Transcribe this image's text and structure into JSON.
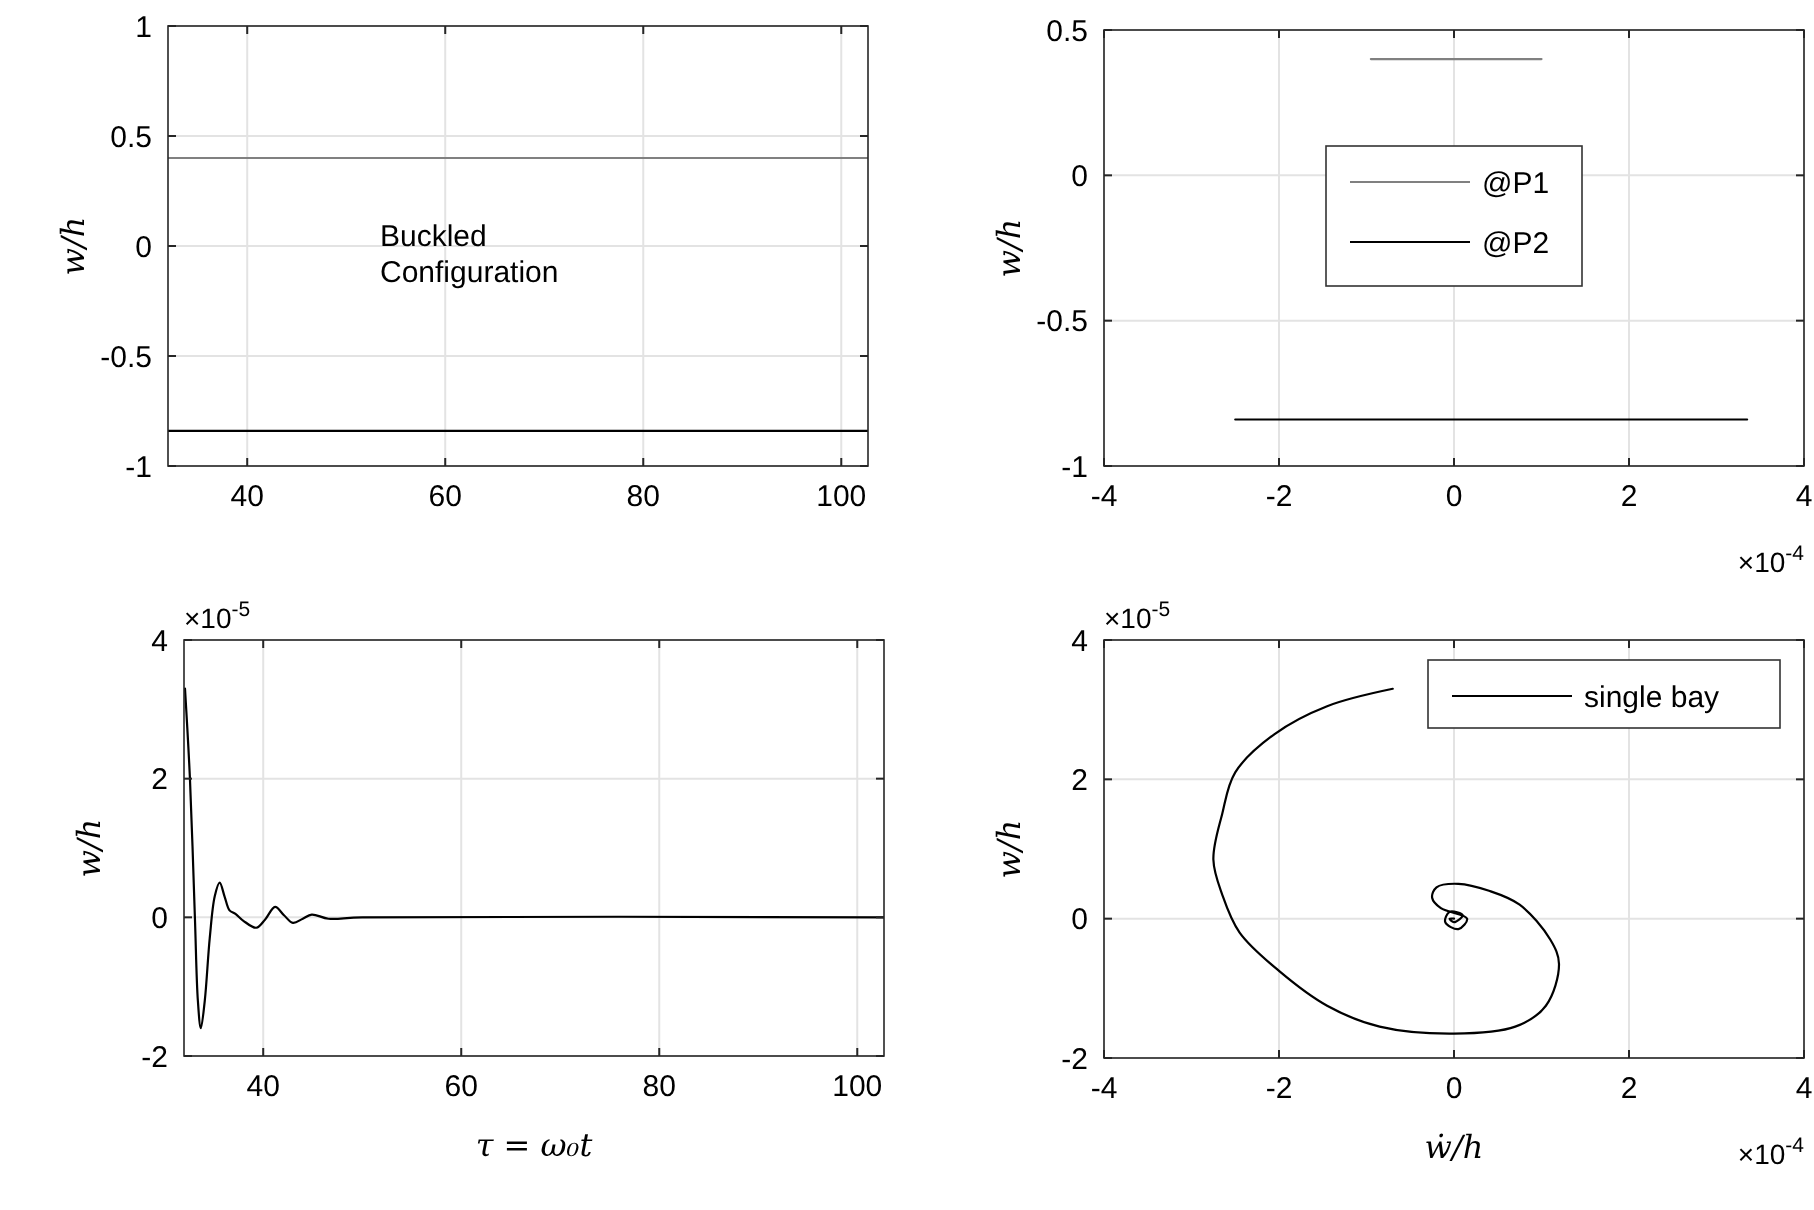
{
  "chart_data": [
    {
      "type": "line",
      "ylabel": "w/h",
      "xlim": [
        32,
        102.7
      ],
      "xticks": [
        40,
        60,
        80,
        100
      ],
      "ylim": [
        -1,
        1
      ],
      "yticks": [
        -1,
        -0.5,
        0,
        0.5,
        1
      ],
      "grid": true,
      "legend": false,
      "annotations": [
        "Buckled\nConfiguration"
      ],
      "series": [
        {
          "color": "#808080",
          "x": [
            32,
            102.7
          ],
          "values": [
            0.4,
            0.4
          ]
        },
        {
          "color": "#000000",
          "x": [
            32,
            102.7
          ],
          "values": [
            -0.84,
            -0.84
          ]
        }
      ]
    },
    {
      "type": "line",
      "ylabel": "w/h",
      "xlim": [
        -4,
        4
      ],
      "xticks": [
        -4,
        -2,
        0,
        2,
        4
      ],
      "ylim": [
        -1,
        0.5
      ],
      "yticks": [
        -1,
        -0.5,
        0,
        0.5
      ],
      "grid": true,
      "legend": "top",
      "annotations": [
        "×10$^{-4}$"
      ],
      "series": [
        {
          "name": "@P1",
          "color": "#808080",
          "x": [
            -0.95,
            1,
            -0.5,
            0.5
          ],
          "values": [
            0.4,
            0.4,
            0.4,
            0.4
          ]
        },
        {
          "name": "@P2",
          "color": "#000000",
          "x": [
            -2.5,
            3.35,
            -1.5,
            1.95,
            -1,
            1
          ],
          "values": [
            -0.84,
            -0.84,
            -0.84,
            -0.84,
            -0.84,
            -0.84
          ]
        }
      ]
    },
    {
      "type": "line",
      "ylabel": "w/h",
      "xlabel": "τ = ω₀t",
      "xlim": [
        32,
        102.7
      ],
      "xticks": [
        40,
        60,
        80,
        100
      ],
      "ylim": [
        -2,
        4
      ],
      "yticks": [
        -2,
        0,
        2,
        4
      ],
      "grid": true,
      "legend": false,
      "annotations": [
        "×10$^{-5}$"
      ],
      "series": [
        {
          "color": "#000000",
          "x": [
            32.1,
            32.6,
            33.1,
            33.4,
            33.7,
            34.1,
            34.6,
            35.1,
            35.6,
            36.1,
            36.6,
            37.2,
            38,
            39.3,
            40.2,
            41.2,
            42.1,
            43,
            44,
            44.9,
            46.6,
            50,
            102.7
          ],
          "values": [
            3.3,
            2.0,
            0,
            -1.2,
            -1.6,
            -1.2,
            -0.3,
            0.3,
            0.5,
            0.3,
            0.1,
            0.05,
            -0.05,
            -0.15,
            -0.03,
            0.15,
            0.03,
            -0.08,
            -0.02,
            0.04,
            -0.02,
            0,
            0
          ]
        }
      ]
    },
    {
      "type": "line",
      "ylabel": "w/h",
      "xlabel": "ẇ/h",
      "xlim": [
        -4,
        4
      ],
      "xticks": [
        -4,
        -2,
        0,
        2,
        4
      ],
      "ylim": [
        -2,
        4
      ],
      "yticks": [
        -2,
        0,
        2,
        4
      ],
      "grid": true,
      "legend": "top right",
      "annotations": [
        "×10$^{-5}$",
        "×10$^{-4}$"
      ],
      "series": [
        {
          "name": "single bay",
          "color": "#000000",
          "x": [
            -0.7,
            -1.45,
            -2.05,
            -2.5,
            -2.65,
            -2.75,
            -2.65,
            -2.45,
            -2,
            -1.45,
            -0.85,
            0,
            0.7,
            1.05,
            1.2,
            1.1,
            0.75,
            0.4,
            0.05,
            -0.2,
            -0.25,
            -0.15,
            0.15,
            0.05,
            -0.1,
            -0.05,
            0.1,
            0,
            -0.05,
            0
          ],
          "values": [
            3.3,
            3.05,
            2.65,
            2.1,
            1.5,
            0.85,
            0.35,
            -0.2,
            -0.75,
            -1.25,
            -1.55,
            -1.65,
            -1.55,
            -1.25,
            -0.65,
            -0.3,
            0.2,
            0.4,
            0.5,
            0.45,
            0.3,
            0.15,
            0,
            -0.15,
            -0.05,
            0.1,
            0.05,
            -0.05,
            0,
            0
          ]
        }
      ]
    }
  ]
}
